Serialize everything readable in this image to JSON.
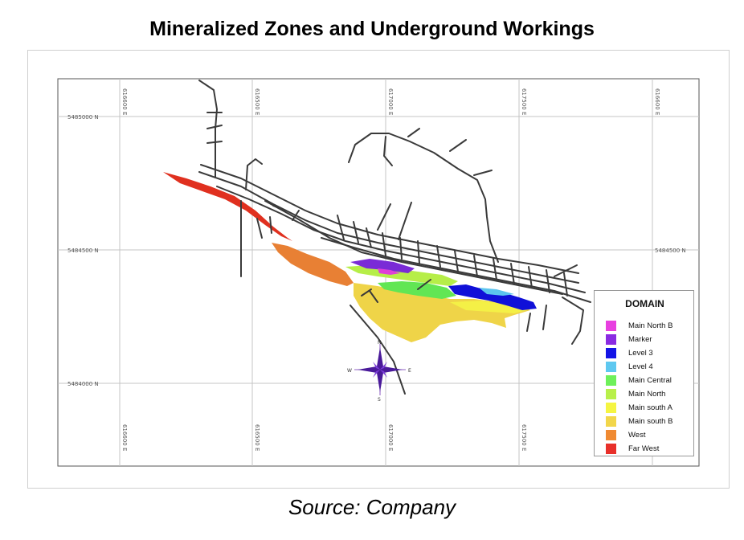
{
  "title": "Mineralized Zones and Underground Workings",
  "source": "Source: Company",
  "grid": {
    "eastings": [
      "616600 E",
      "616500 E",
      "617000 E",
      "617500 E"
    ],
    "northings_left": [
      "5485000 N",
      "5484500 N",
      "5484000 N"
    ],
    "northings_right": [
      "5484500 N"
    ],
    "top_eastings": [
      "616600 E",
      "616500 E",
      "617000 E",
      "617500 E",
      "616600 E"
    ]
  },
  "compass": {
    "n": "N",
    "s": "S",
    "e": "E",
    "w": "W"
  },
  "legend": {
    "title": "DOMAIN",
    "items": [
      {
        "label": "Main North B",
        "color": "#e83fe0"
      },
      {
        "label": "Marker",
        "color": "#8a2be2"
      },
      {
        "label": "Level 3",
        "color": "#1414e6"
      },
      {
        "label": "Level 4",
        "color": "#5ec8f0"
      },
      {
        "label": "Main Central",
        "color": "#6ef05a"
      },
      {
        "label": "Main North",
        "color": "#b8f04a"
      },
      {
        "label": "Main south A",
        "color": "#f5f542"
      },
      {
        "label": "Main south B",
        "color": "#f2d64a"
      },
      {
        "label": "West",
        "color": "#f08a32"
      },
      {
        "label": "Far West",
        "color": "#e8302a"
      }
    ]
  }
}
